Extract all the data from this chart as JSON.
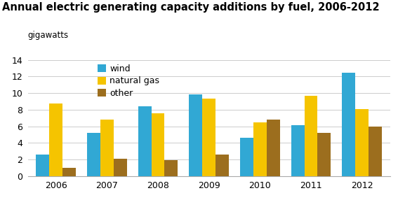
{
  "title": "Annual electric generating capacity additions by fuel, 2006-2012",
  "ylabel_above": "gigawatts",
  "years": [
    2006,
    2007,
    2008,
    2009,
    2010,
    2011,
    2012
  ],
  "wind": [
    2.6,
    5.2,
    8.4,
    9.85,
    4.65,
    6.1,
    12.5
  ],
  "natural_gas": [
    8.75,
    6.8,
    7.55,
    9.35,
    6.45,
    9.65,
    8.05
  ],
  "other": [
    1.0,
    2.1,
    1.9,
    2.55,
    6.8,
    5.2,
    6.0
  ],
  "wind_color": "#31a8d4",
  "natural_gas_color": "#f5c400",
  "other_color": "#9c6e1e",
  "ylim": [
    0,
    14
  ],
  "yticks": [
    0,
    2,
    4,
    6,
    8,
    10,
    12,
    14
  ],
  "bar_width": 0.26,
  "legend_labels": [
    "wind",
    "natural gas",
    "other"
  ],
  "title_fontsize": 10.5,
  "small_fontsize": 8.5,
  "tick_fontsize": 9,
  "legend_fontsize": 9,
  "background_color": "#ffffff"
}
